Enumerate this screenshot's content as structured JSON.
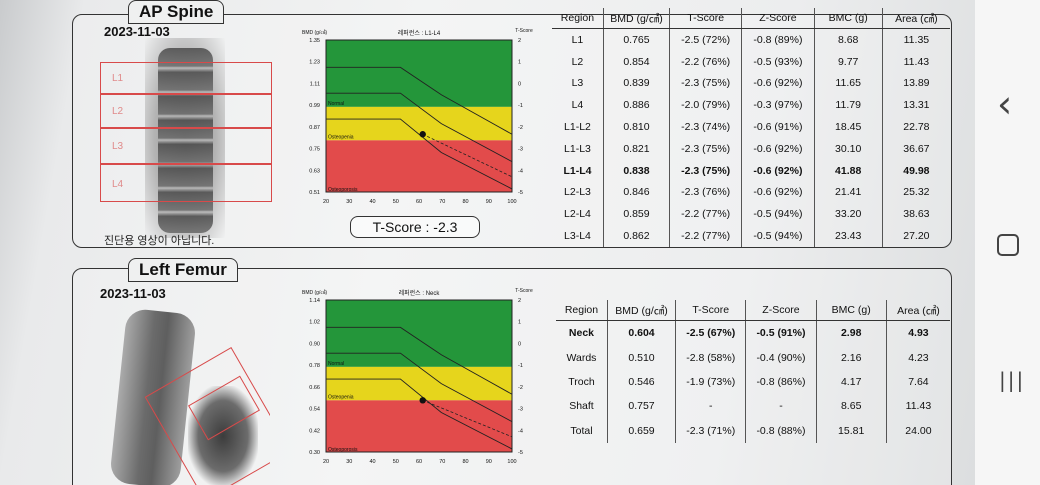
{
  "spine": {
    "title": "AP Spine",
    "date": "2023-11-03",
    "roi_labels": [
      "L1",
      "L2",
      "L3",
      "L4"
    ],
    "note": "진단용 영상이 아닙니다.",
    "chart": {
      "bmd_label": "BMD (g/㎠)",
      "ref_label": "레퍼런스 : L1-L4",
      "tscore_label": "T-Score",
      "bmd_ticks": [
        "1.35",
        "1.23",
        "1.11",
        "0.99",
        "0.87",
        "0.75",
        "0.63",
        "0.51"
      ],
      "t_ticks": [
        "2",
        "1",
        "0",
        "-1",
        "-2",
        "-3",
        "-4",
        "-5"
      ],
      "age_ticks": [
        "20",
        "30",
        "40",
        "50",
        "60",
        "70",
        "80",
        "90",
        "100"
      ],
      "zones": [
        "Normal",
        "Osteopenia",
        "Osteoporosis"
      ]
    },
    "tscore_box": "T-Score : -2.3",
    "headers": [
      "Region",
      "BMD (g/㎠)",
      "T-Score",
      "Z-Score",
      "BMC (g)",
      "Area (㎠)"
    ],
    "rows": [
      [
        "L1",
        "0.765",
        "-2.5 (72%)",
        "-0.8 (89%)",
        "8.68",
        "11.35"
      ],
      [
        "L2",
        "0.854",
        "-2.2 (76%)",
        "-0.5 (93%)",
        "9.77",
        "11.43"
      ],
      [
        "L3",
        "0.839",
        "-2.3 (75%)",
        "-0.6 (92%)",
        "11.65",
        "13.89"
      ],
      [
        "L4",
        "0.886",
        "-2.0 (79%)",
        "-0.3 (97%)",
        "11.79",
        "13.31"
      ],
      [
        "L1-L2",
        "0.810",
        "-2.3 (74%)",
        "-0.6 (91%)",
        "18.45",
        "22.78"
      ],
      [
        "L1-L3",
        "0.821",
        "-2.3 (75%)",
        "-0.6 (92%)",
        "30.10",
        "36.67"
      ],
      [
        "L1-L4",
        "0.838",
        "-2.3 (75%)",
        "-0.6 (92%)",
        "41.88",
        "49.98"
      ],
      [
        "L2-L3",
        "0.846",
        "-2.3 (76%)",
        "-0.6 (92%)",
        "21.41",
        "25.32"
      ],
      [
        "L2-L4",
        "0.859",
        "-2.2 (77%)",
        "-0.5 (94%)",
        "33.20",
        "38.63"
      ],
      [
        "L3-L4",
        "0.862",
        "-2.2 (77%)",
        "-0.5 (94%)",
        "23.43",
        "27.20"
      ]
    ],
    "bold_row": 6
  },
  "femur": {
    "title": "Left Femur",
    "date": "2023-11-03",
    "chart": {
      "bmd_label": "BMD (g/㎠)",
      "ref_label": "레퍼런스 : Neck",
      "tscore_label": "T-Score",
      "bmd_ticks": [
        "1.14",
        "1.02",
        "0.90",
        "0.78",
        "0.66",
        "0.54",
        "0.42",
        "0.30"
      ],
      "t_ticks": [
        "2",
        "1",
        "0",
        "-1",
        "-2",
        "-3",
        "-4",
        "-5"
      ],
      "age_ticks": [
        "20",
        "30",
        "40",
        "50",
        "60",
        "70",
        "80",
        "90",
        "100"
      ],
      "zones": [
        "Normal",
        "Osteopenia",
        "Osteoporosis"
      ]
    },
    "headers": [
      "Region",
      "BMD (g/㎠)",
      "T-Score",
      "Z-Score",
      "BMC (g)",
      "Area (㎠)"
    ],
    "rows": [
      [
        "Neck",
        "0.604",
        "-2.5 (67%)",
        "-0.5 (91%)",
        "2.98",
        "4.93"
      ],
      [
        "Wards",
        "0.510",
        "-2.8 (58%)",
        "-0.4 (90%)",
        "2.16",
        "4.23"
      ],
      [
        "Troch",
        "0.546",
        "-1.9 (73%)",
        "-0.8 (86%)",
        "4.17",
        "7.64"
      ],
      [
        "Shaft",
        "0.757",
        "-",
        "-",
        "8.65",
        "11.43"
      ],
      [
        "Total",
        "0.659",
        "-2.3 (71%)",
        "-0.8 (88%)",
        "15.81",
        "24.00"
      ]
    ],
    "bold_row": 0
  },
  "nav": {
    "back": "‹",
    "home": "○",
    "recents": "|||"
  },
  "colors": {
    "green": "#24963a",
    "yellow": "#e6d51c",
    "red": "#e24b4b",
    "roi": "#d84a4a"
  }
}
